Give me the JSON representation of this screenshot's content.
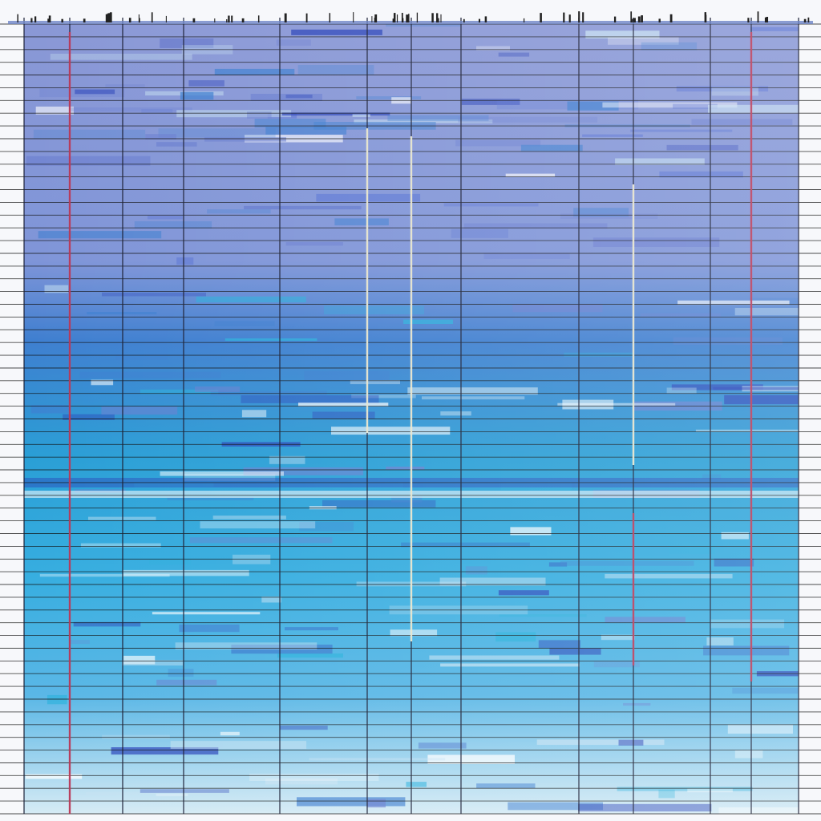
{
  "palette": {
    "page": "#f7f8fb",
    "wash_top": "#8a98d6",
    "wash_mid_blue": "#3f7fd0",
    "wash_cyan": "#2bb2dc",
    "wash_deep": "#2a43b8",
    "wash_pale": "#c8e2f2",
    "grid_line": "#1b1f36",
    "rule_line": "#111111",
    "accent_red": "#c23a5a",
    "accent_cream": "#f4f1d6"
  },
  "pattern": {
    "horizontal_rules": 62,
    "vertical_dividers": 13,
    "accent_strokes": 6
  }
}
